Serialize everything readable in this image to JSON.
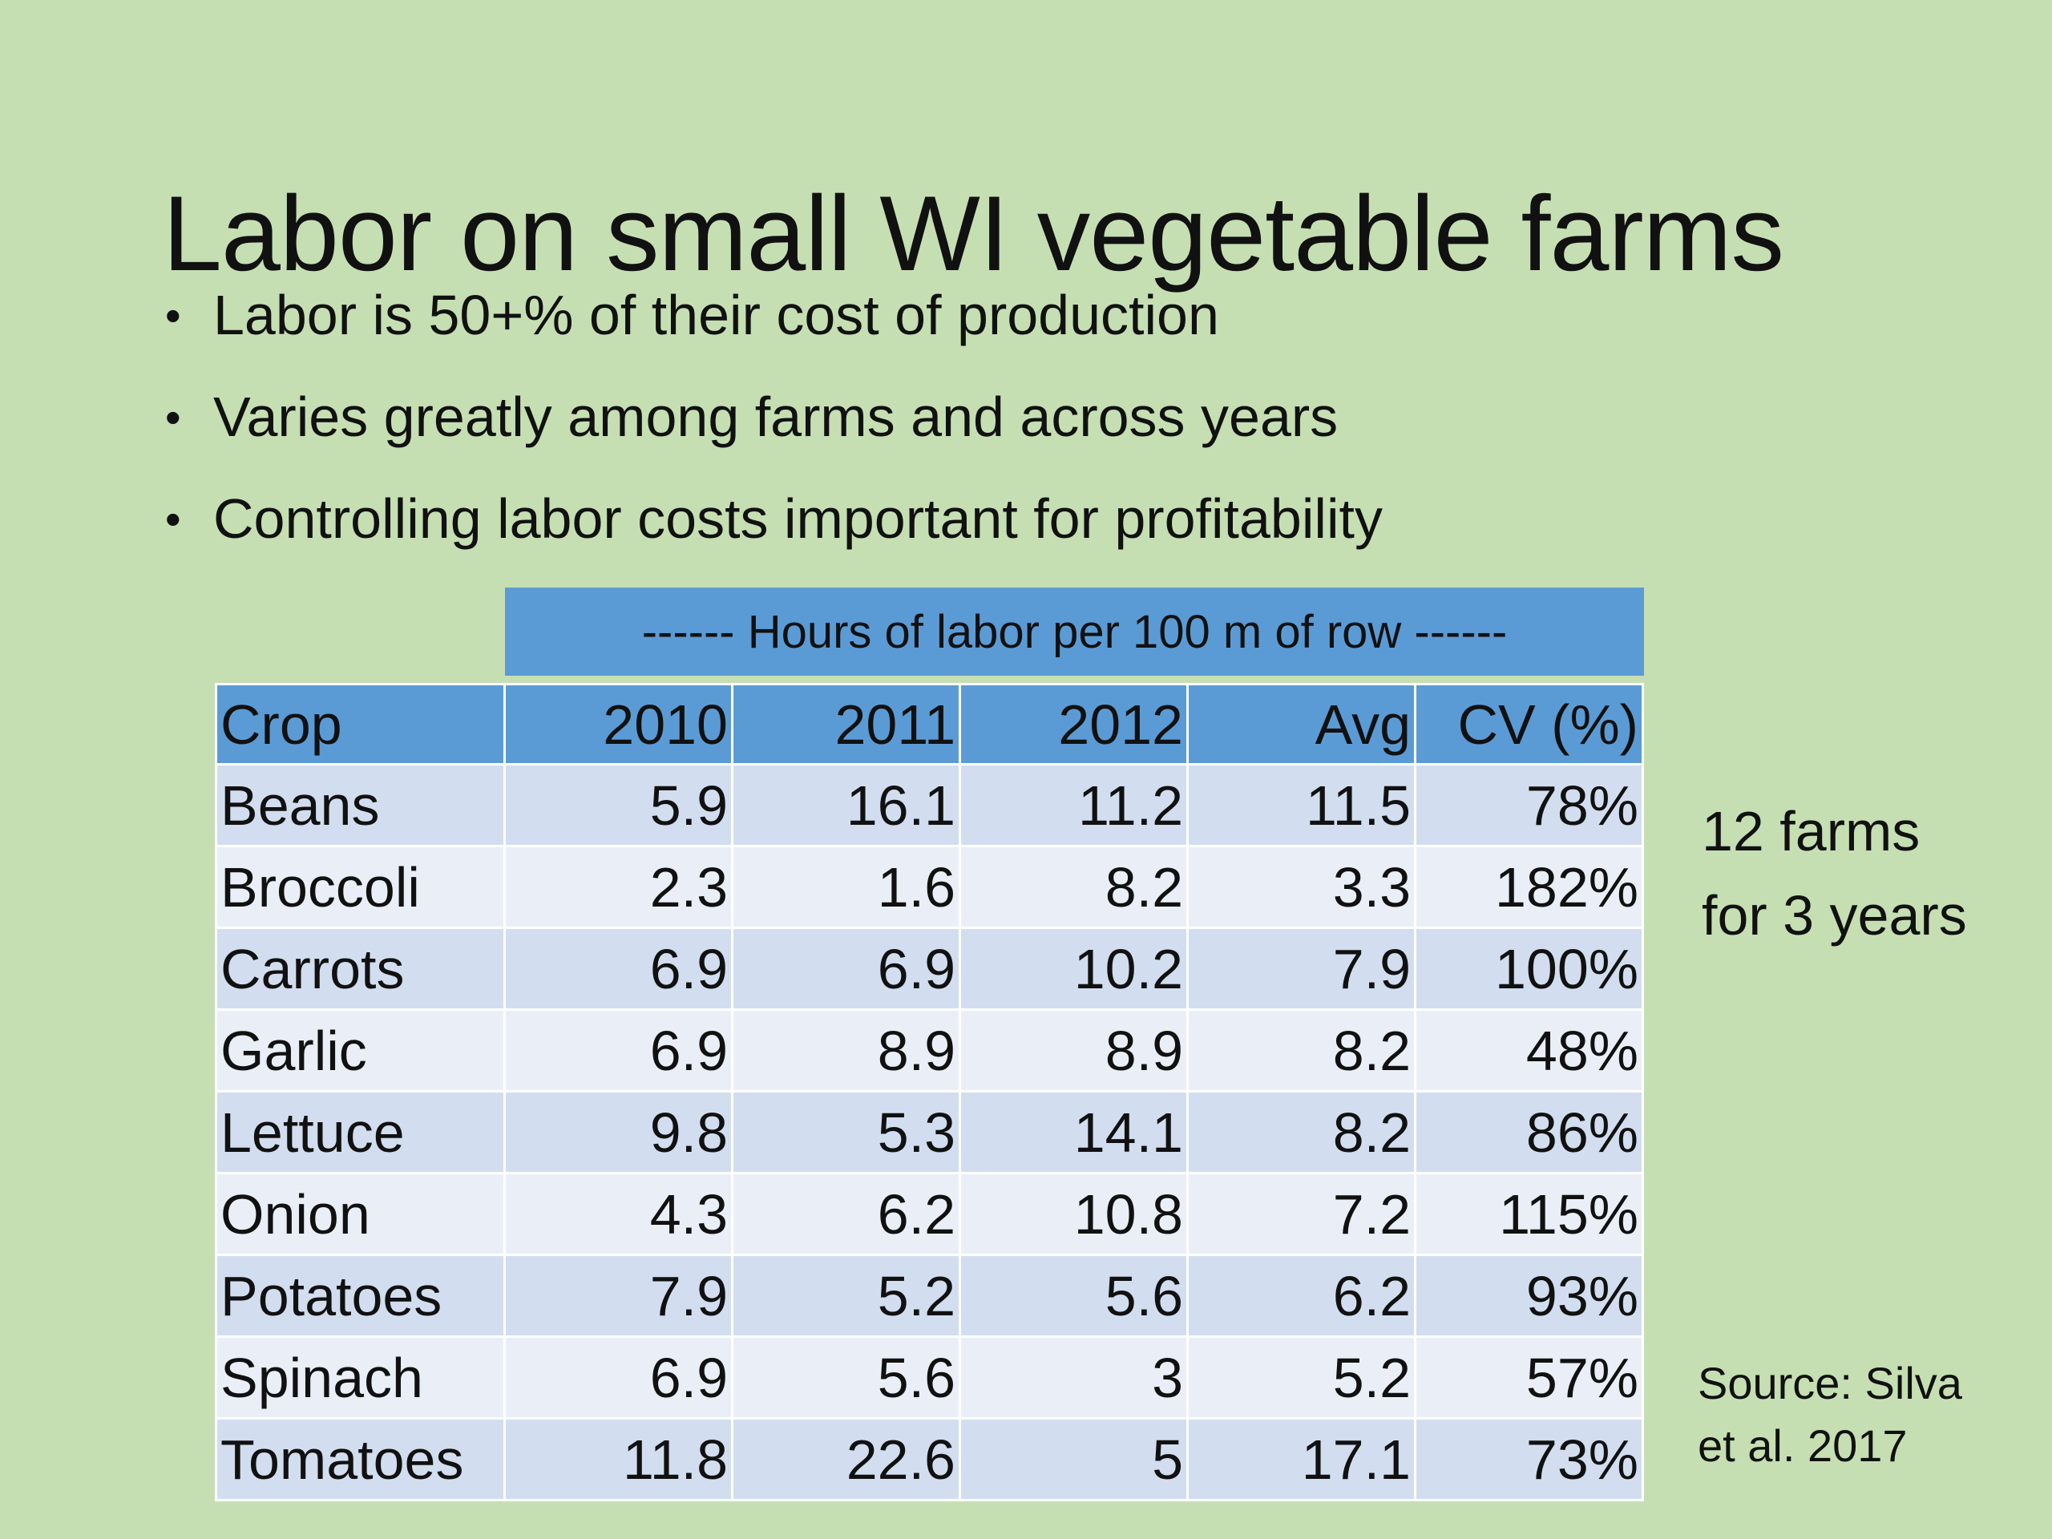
{
  "slide": {
    "title": "Labor on small WI vegetable farms",
    "bullets": [
      "Labor is 50+% of their cost of production",
      "Varies greatly among farms and across years",
      "Controlling labor costs important for profitability"
    ]
  },
  "table": {
    "group_header": "------ Hours of labor per 100 m of row ------",
    "columns": [
      "Crop",
      "2010",
      "2011",
      "2012",
      "Avg",
      "CV (%)"
    ],
    "rows": [
      [
        "Beans",
        "5.9",
        "16.1",
        "11.2",
        "11.5",
        "78%"
      ],
      [
        "Broccoli",
        "2.3",
        "1.6",
        "8.2",
        "3.3",
        "182%"
      ],
      [
        "Carrots",
        "6.9",
        "6.9",
        "10.2",
        "7.9",
        "100%"
      ],
      [
        "Garlic",
        "6.9",
        "8.9",
        "8.9",
        "8.2",
        "48%"
      ],
      [
        "Lettuce",
        "9.8",
        "5.3",
        "14.1",
        "8.2",
        "86%"
      ],
      [
        "Onion",
        "4.3",
        "6.2",
        "10.8",
        "7.2",
        "115%"
      ],
      [
        "Potatoes",
        "7.9",
        "5.2",
        "5.6",
        "6.2",
        "93%"
      ],
      [
        "Spinach",
        "6.9",
        "5.6",
        "3",
        "5.2",
        "57%"
      ],
      [
        "Tomatoes",
        "11.8",
        "22.6",
        "5",
        "17.1",
        "73%"
      ]
    ]
  },
  "side_note": {
    "line1": "12 farms",
    "line2": "for 3 years"
  },
  "source": {
    "line1": "Source: Silva",
    "line2": "et al. 2017"
  },
  "colors": {
    "background": "#c5dfb3",
    "header_blue": "#5b9bd5",
    "row_dark": "#d2deef",
    "row_light": "#eaeff7"
  }
}
